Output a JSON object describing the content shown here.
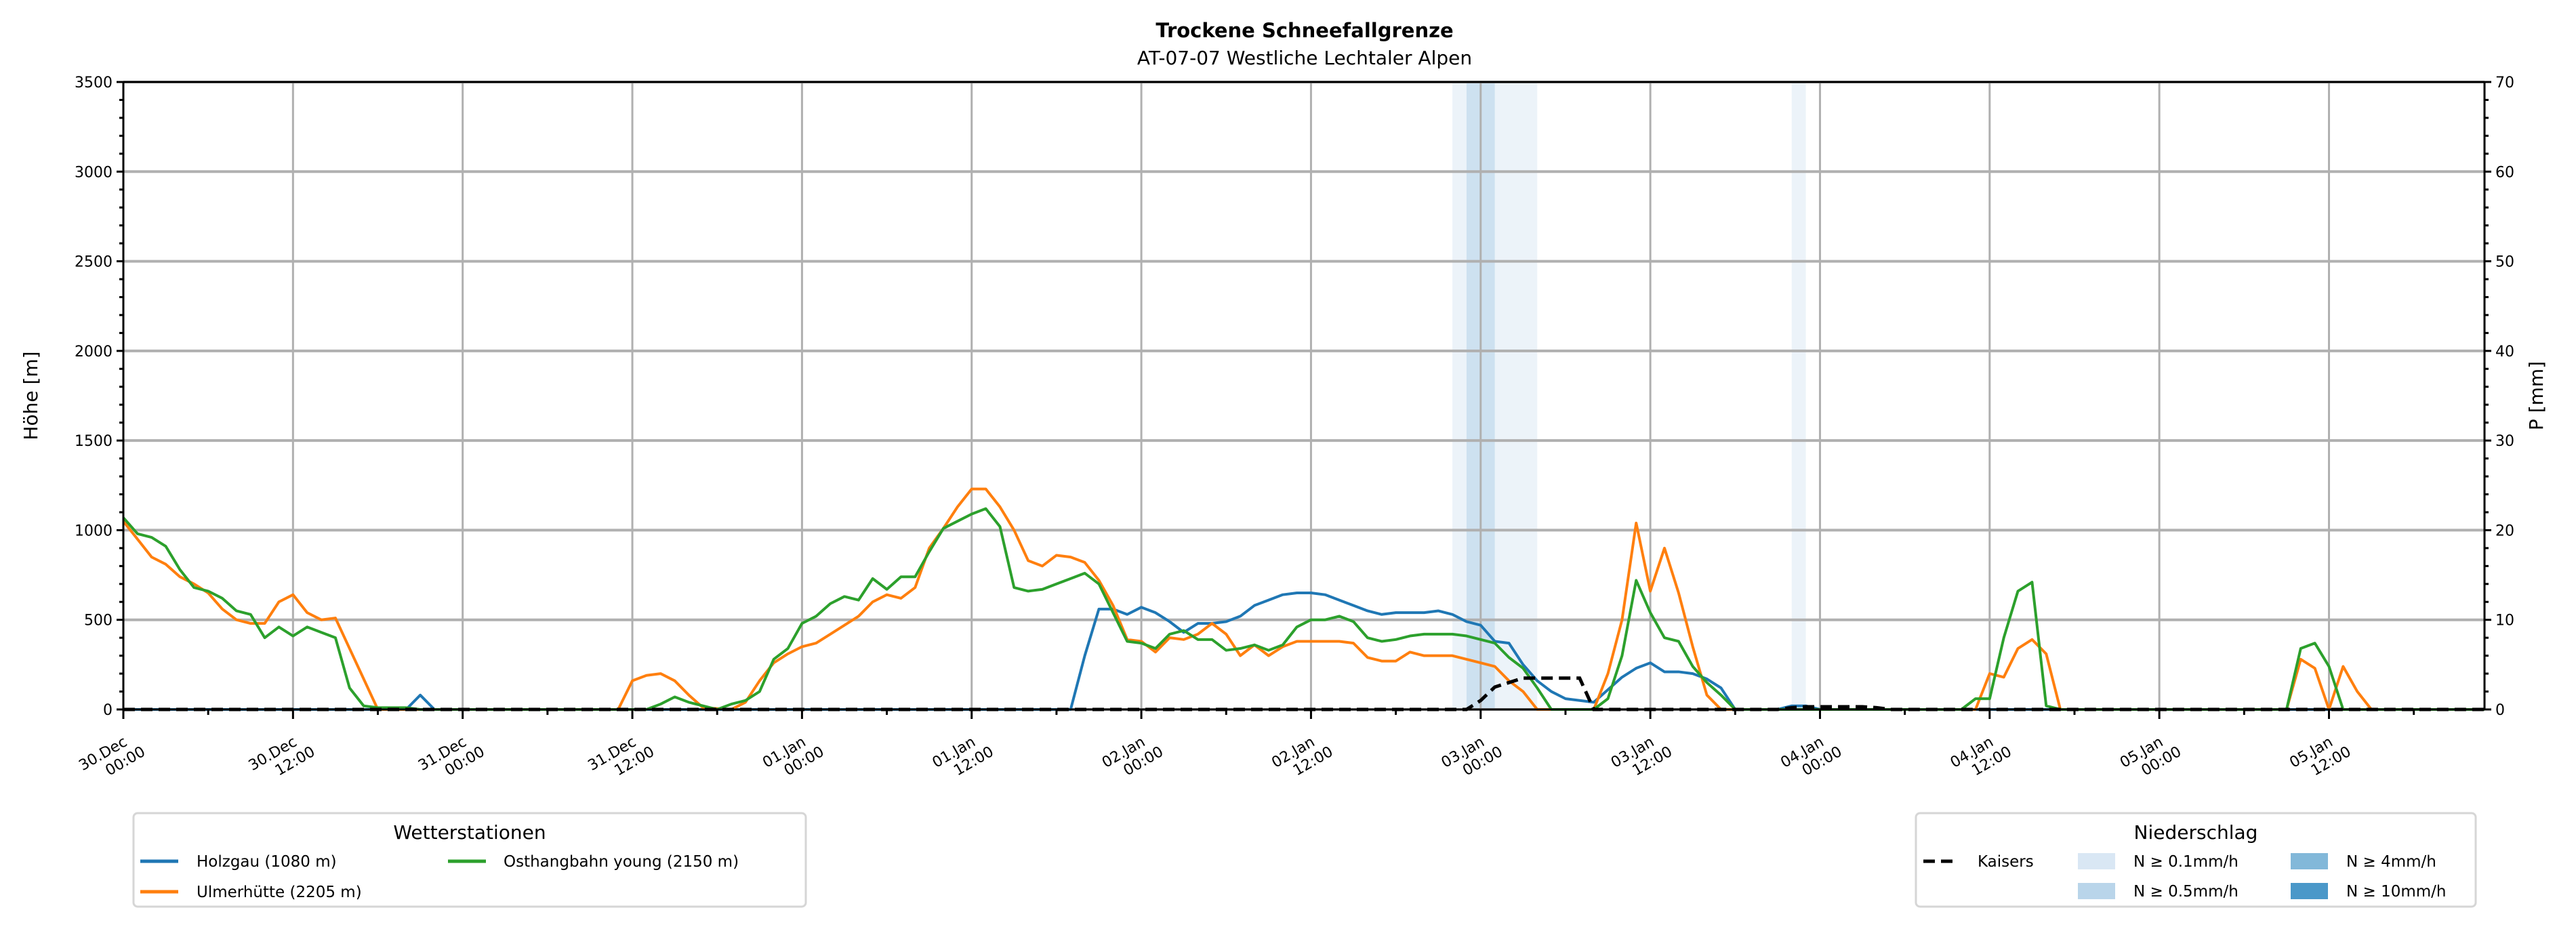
{
  "chart_data": {
    "type": "line",
    "title": "Trockene Schneefallgrenze",
    "subtitle": "AT-07-07 Westliche Lechtaler Alpen",
    "ylabel": "Höhe [m]",
    "ylabel_right": "P [mm]",
    "ylim": [
      0,
      3500
    ],
    "ylim_right": [
      0,
      70
    ],
    "xlim_hours": [
      0,
      167
    ],
    "grid": true,
    "yticks": [
      "0",
      "500",
      "1000",
      "1500",
      "2000",
      "2500",
      "3000",
      "3500"
    ],
    "yticks_right": [
      "0",
      "10",
      "20",
      "30",
      "40",
      "50",
      "60",
      "70"
    ],
    "xticks": [
      {
        "hour": 0,
        "l1": "30.Dec",
        "l2": "00:00"
      },
      {
        "hour": 12,
        "l1": "30.Dec",
        "l2": "12:00"
      },
      {
        "hour": 24,
        "l1": "31.Dec",
        "l2": "00:00"
      },
      {
        "hour": 36,
        "l1": "31.Dec",
        "l2": "12:00"
      },
      {
        "hour": 48,
        "l1": "01.Jan",
        "l2": "00:00"
      },
      {
        "hour": 60,
        "l1": "01.Jan",
        "l2": "12:00"
      },
      {
        "hour": 72,
        "l1": "02.Jan",
        "l2": "00:00"
      },
      {
        "hour": 84,
        "l1": "02.Jan",
        "l2": "12:00"
      },
      {
        "hour": 96,
        "l1": "03.Jan",
        "l2": "00:00"
      },
      {
        "hour": 108,
        "l1": "03.Jan",
        "l2": "12:00"
      },
      {
        "hour": 120,
        "l1": "04.Jan",
        "l2": "00:00"
      },
      {
        "hour": 132,
        "l1": "04.Jan",
        "l2": "12:00"
      },
      {
        "hour": 144,
        "l1": "05.Jan",
        "l2": "00:00"
      },
      {
        "hour": 156,
        "l1": "05.Jan",
        "l2": "12:00"
      }
    ],
    "series": [
      {
        "name": "Holzgau (1080 m)",
        "color": "#1f77b4",
        "points": [
          [
            0,
            0
          ],
          [
            20,
            0
          ],
          [
            21,
            80
          ],
          [
            22,
            0
          ],
          [
            67,
            0
          ],
          [
            68,
            300
          ],
          [
            69,
            560
          ],
          [
            70,
            560
          ],
          [
            71,
            530
          ],
          [
            72,
            570
          ],
          [
            73,
            540
          ],
          [
            74,
            490
          ],
          [
            75,
            430
          ],
          [
            76,
            480
          ],
          [
            77,
            480
          ],
          [
            78,
            490
          ],
          [
            79,
            520
          ],
          [
            80,
            580
          ],
          [
            81,
            610
          ],
          [
            82,
            640
          ],
          [
            83,
            650
          ],
          [
            84,
            650
          ],
          [
            85,
            640
          ],
          [
            86,
            610
          ],
          [
            87,
            580
          ],
          [
            88,
            550
          ],
          [
            89,
            530
          ],
          [
            90,
            540
          ],
          [
            91,
            540
          ],
          [
            92,
            540
          ],
          [
            93,
            550
          ],
          [
            94,
            530
          ],
          [
            95,
            490
          ],
          [
            96,
            470
          ],
          [
            97,
            380
          ],
          [
            98,
            370
          ],
          [
            99,
            250
          ],
          [
            100,
            160
          ],
          [
            101,
            100
          ],
          [
            102,
            60
          ],
          [
            103,
            50
          ],
          [
            104,
            40
          ],
          [
            105,
            110
          ],
          [
            106,
            180
          ],
          [
            107,
            230
          ],
          [
            108,
            260
          ],
          [
            109,
            210
          ],
          [
            110,
            210
          ],
          [
            111,
            200
          ],
          [
            112,
            170
          ],
          [
            113,
            120
          ],
          [
            114,
            0
          ],
          [
            117,
            0
          ],
          [
            118,
            20
          ],
          [
            119,
            20
          ],
          [
            120,
            0
          ],
          [
            167,
            0
          ]
        ]
      },
      {
        "name": "Ulmerhütte (2205 m)",
        "color": "#ff7f0e",
        "points": [
          [
            0,
            1050
          ],
          [
            1,
            950
          ],
          [
            2,
            850
          ],
          [
            3,
            810
          ],
          [
            4,
            740
          ],
          [
            5,
            700
          ],
          [
            6,
            650
          ],
          [
            7,
            560
          ],
          [
            8,
            500
          ],
          [
            9,
            480
          ],
          [
            10,
            480
          ],
          [
            11,
            600
          ],
          [
            12,
            640
          ],
          [
            13,
            540
          ],
          [
            14,
            500
          ],
          [
            15,
            510
          ],
          [
            16,
            340
          ],
          [
            17,
            170
          ],
          [
            18,
            0
          ],
          [
            35,
            0
          ],
          [
            36,
            160
          ],
          [
            37,
            190
          ],
          [
            38,
            200
          ],
          [
            39,
            160
          ],
          [
            40,
            80
          ],
          [
            41,
            10
          ],
          [
            43,
            0
          ],
          [
            44,
            40
          ],
          [
            45,
            160
          ],
          [
            46,
            260
          ],
          [
            47,
            310
          ],
          [
            48,
            350
          ],
          [
            49,
            370
          ],
          [
            50,
            420
          ],
          [
            51,
            470
          ],
          [
            52,
            520
          ],
          [
            53,
            600
          ],
          [
            54,
            640
          ],
          [
            55,
            620
          ],
          [
            56,
            680
          ],
          [
            57,
            900
          ],
          [
            58,
            1010
          ],
          [
            59,
            1130
          ],
          [
            60,
            1230
          ],
          [
            61,
            1230
          ],
          [
            62,
            1130
          ],
          [
            63,
            1000
          ],
          [
            64,
            830
          ],
          [
            65,
            800
          ],
          [
            66,
            860
          ],
          [
            67,
            850
          ],
          [
            68,
            820
          ],
          [
            69,
            720
          ],
          [
            70,
            580
          ],
          [
            71,
            390
          ],
          [
            72,
            380
          ],
          [
            73,
            320
          ],
          [
            74,
            400
          ],
          [
            75,
            390
          ],
          [
            76,
            420
          ],
          [
            77,
            480
          ],
          [
            78,
            420
          ],
          [
            79,
            300
          ],
          [
            80,
            360
          ],
          [
            81,
            300
          ],
          [
            82,
            350
          ],
          [
            83,
            380
          ],
          [
            84,
            380
          ],
          [
            85,
            380
          ],
          [
            86,
            380
          ],
          [
            87,
            370
          ],
          [
            88,
            290
          ],
          [
            89,
            270
          ],
          [
            90,
            270
          ],
          [
            91,
            320
          ],
          [
            92,
            300
          ],
          [
            93,
            300
          ],
          [
            94,
            300
          ],
          [
            95,
            280
          ],
          [
            96,
            260
          ],
          [
            97,
            240
          ],
          [
            98,
            160
          ],
          [
            99,
            100
          ],
          [
            100,
            0
          ],
          [
            104,
            0
          ],
          [
            105,
            200
          ],
          [
            106,
            500
          ],
          [
            107,
            1040
          ],
          [
            108,
            660
          ],
          [
            109,
            900
          ],
          [
            110,
            650
          ],
          [
            111,
            350
          ],
          [
            112,
            80
          ],
          [
            113,
            0
          ],
          [
            131,
            0
          ],
          [
            132,
            200
          ],
          [
            133,
            180
          ],
          [
            134,
            340
          ],
          [
            135,
            390
          ],
          [
            136,
            310
          ],
          [
            137,
            0
          ],
          [
            153,
            0
          ],
          [
            154,
            280
          ],
          [
            155,
            230
          ],
          [
            156,
            0
          ],
          [
            157,
            240
          ],
          [
            158,
            100
          ],
          [
            159,
            0
          ],
          [
            167,
            0
          ]
        ]
      },
      {
        "name": "Osthangbahn young (2150 m)",
        "color": "#2ca02c",
        "points": [
          [
            0,
            1070
          ],
          [
            1,
            980
          ],
          [
            2,
            960
          ],
          [
            3,
            910
          ],
          [
            4,
            780
          ],
          [
            5,
            680
          ],
          [
            6,
            660
          ],
          [
            7,
            620
          ],
          [
            8,
            550
          ],
          [
            9,
            530
          ],
          [
            10,
            400
          ],
          [
            11,
            460
          ],
          [
            12,
            410
          ],
          [
            13,
            460
          ],
          [
            14,
            430
          ],
          [
            15,
            400
          ],
          [
            16,
            120
          ],
          [
            17,
            20
          ],
          [
            18,
            10
          ],
          [
            20,
            10
          ],
          [
            21,
            0
          ],
          [
            37,
            0
          ],
          [
            38,
            30
          ],
          [
            39,
            70
          ],
          [
            40,
            40
          ],
          [
            41,
            20
          ],
          [
            42,
            0
          ],
          [
            43,
            30
          ],
          [
            44,
            50
          ],
          [
            45,
            100
          ],
          [
            46,
            280
          ],
          [
            47,
            340
          ],
          [
            48,
            480
          ],
          [
            49,
            520
          ],
          [
            50,
            590
          ],
          [
            51,
            630
          ],
          [
            52,
            610
          ],
          [
            53,
            730
          ],
          [
            54,
            670
          ],
          [
            55,
            740
          ],
          [
            56,
            740
          ],
          [
            57,
            880
          ],
          [
            58,
            1010
          ],
          [
            59,
            1050
          ],
          [
            60,
            1090
          ],
          [
            61,
            1120
          ],
          [
            62,
            1020
          ],
          [
            63,
            680
          ],
          [
            64,
            660
          ],
          [
            65,
            670
          ],
          [
            66,
            700
          ],
          [
            67,
            730
          ],
          [
            68,
            760
          ],
          [
            69,
            700
          ],
          [
            70,
            540
          ],
          [
            71,
            380
          ],
          [
            72,
            370
          ],
          [
            73,
            340
          ],
          [
            74,
            420
          ],
          [
            75,
            440
          ],
          [
            76,
            390
          ],
          [
            77,
            390
          ],
          [
            78,
            330
          ],
          [
            79,
            340
          ],
          [
            80,
            360
          ],
          [
            81,
            330
          ],
          [
            82,
            360
          ],
          [
            83,
            460
          ],
          [
            84,
            500
          ],
          [
            85,
            500
          ],
          [
            86,
            520
          ],
          [
            87,
            490
          ],
          [
            88,
            400
          ],
          [
            89,
            380
          ],
          [
            90,
            390
          ],
          [
            91,
            410
          ],
          [
            92,
            420
          ],
          [
            93,
            420
          ],
          [
            94,
            420
          ],
          [
            95,
            410
          ],
          [
            96,
            390
          ],
          [
            97,
            370
          ],
          [
            98,
            290
          ],
          [
            99,
            230
          ],
          [
            100,
            120
          ],
          [
            101,
            0
          ],
          [
            104,
            0
          ],
          [
            105,
            60
          ],
          [
            106,
            300
          ],
          [
            107,
            720
          ],
          [
            108,
            540
          ],
          [
            109,
            400
          ],
          [
            110,
            380
          ],
          [
            111,
            240
          ],
          [
            112,
            150
          ],
          [
            113,
            80
          ],
          [
            114,
            0
          ],
          [
            130,
            0
          ],
          [
            131,
            60
          ],
          [
            132,
            60
          ],
          [
            133,
            400
          ],
          [
            134,
            660
          ],
          [
            135,
            710
          ],
          [
            136,
            20
          ],
          [
            137,
            0
          ],
          [
            153,
            0
          ],
          [
            154,
            340
          ],
          [
            155,
            370
          ],
          [
            156,
            240
          ],
          [
            157,
            0
          ],
          [
            167,
            0
          ]
        ]
      }
    ],
    "precip_series": {
      "name": "Kaisers",
      "color": "#000000",
      "points_mm": [
        [
          0,
          0
        ],
        [
          95,
          0
        ],
        [
          96,
          1
        ],
        [
          97,
          2.5
        ],
        [
          98,
          3
        ],
        [
          99,
          3.5
        ],
        [
          103,
          3.5
        ],
        [
          104,
          0
        ],
        [
          117,
          0
        ],
        [
          118,
          0.2
        ],
        [
          119,
          0.3
        ],
        [
          123,
          0.3
        ],
        [
          124,
          0.2
        ],
        [
          125,
          0
        ],
        [
          167,
          0
        ]
      ]
    },
    "precip_bands": [
      {
        "from_hour": 94,
        "to_hour": 100,
        "class": "N ≥ 0.1mm/h"
      },
      {
        "from_hour": 95,
        "to_hour": 97,
        "class": "N ≥ 0.5mm/h"
      },
      {
        "from_hour": 118,
        "to_hour": 119,
        "class": "N ≥ 0.1mm/h"
      }
    ],
    "legend_stations": {
      "title": "Wetterstationen",
      "placement": "bottom-left"
    },
    "legend_precip": {
      "title": "Niederschlag",
      "placement": "bottom-right",
      "line_label": "Kaisers",
      "classes": [
        {
          "label": "N ≥ 0.1mm/h",
          "color": "#d9e7f4"
        },
        {
          "label": "N ≥ 0.5mm/h",
          "color": "#b9d5ea"
        },
        {
          "label": "N ≥ 4mm/h",
          "color": "#82b8d9"
        },
        {
          "label": "N ≥ 10mm/h",
          "color": "#4a98c9"
        }
      ]
    }
  }
}
